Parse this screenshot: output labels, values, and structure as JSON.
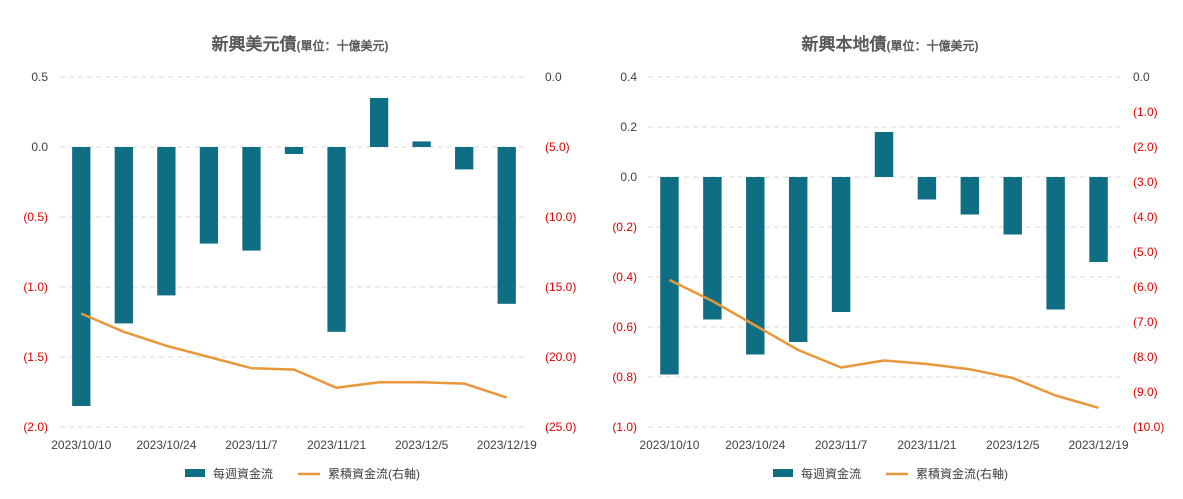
{
  "colors": {
    "bar": "#0f6e84",
    "line": "#e8973a",
    "negative_tick": "#e00000",
    "tick": "#404040",
    "grid": "#d9d9d9"
  },
  "chart_data": [
    {
      "type": "bar+line",
      "title": "新興美元債",
      "title_unit": "(單位：十億美元)",
      "categories": [
        "2023/10/10",
        "2023/10/17",
        "2023/10/24",
        "2023/10/31",
        "2023/11/7",
        "2023/11/14",
        "2023/11/21",
        "2023/11/28",
        "2023/12/5",
        "2023/12/12",
        "2023/12/19"
      ],
      "x_tick_labels": [
        "2023/10/10",
        "",
        "2023/10/24",
        "",
        "2023/11/7",
        "",
        "2023/11/21",
        "",
        "2023/12/5",
        "",
        "2023/12/19"
      ],
      "series": [
        {
          "name": "每週資金流",
          "type": "bar",
          "axis": "left",
          "values": [
            -1.85,
            -1.26,
            -1.06,
            -0.69,
            -0.74,
            -0.05,
            -1.32,
            0.35,
            0.04,
            -0.16,
            -1.12
          ]
        },
        {
          "name": "累積資金流(右軸)",
          "type": "line",
          "axis": "right",
          "values": [
            -16.9,
            -18.2,
            -19.2,
            -20.0,
            -20.8,
            -20.9,
            -22.2,
            -21.8,
            -21.8,
            -21.9,
            -22.9
          ]
        }
      ],
      "left_axis": {
        "ylim": [
          -2.0,
          0.5
        ],
        "ticks": [
          0.5,
          0.0,
          -0.5,
          -1.0,
          -1.5,
          -2.0
        ],
        "tick_labels": [
          "0.5",
          "0.0",
          "(0.5)",
          "(1.0)",
          "(1.5)",
          "(2.0)"
        ]
      },
      "right_axis": {
        "ylim": [
          -25.0,
          0.0
        ],
        "ticks": [
          0.0,
          -5.0,
          -10.0,
          -15.0,
          -20.0,
          -25.0
        ],
        "tick_labels": [
          "0.0",
          "(5.0)",
          "(10.0)",
          "(15.0)",
          "(20.0)",
          "(25.0)"
        ]
      },
      "grid": "horizontal dashed",
      "legend": "bottom"
    },
    {
      "type": "bar+line",
      "title": "新興本地債",
      "title_unit": "(單位：十億美元)",
      "categories": [
        "2023/10/10",
        "2023/10/17",
        "2023/10/24",
        "2023/10/31",
        "2023/11/7",
        "2023/11/14",
        "2023/11/21",
        "2023/11/28",
        "2023/12/5",
        "2023/12/12",
        "2023/12/19"
      ],
      "x_tick_labels": [
        "2023/10/10",
        "",
        "2023/10/24",
        "",
        "2023/11/7",
        "",
        "2023/11/21",
        "",
        "2023/12/5",
        "",
        "2023/12/19"
      ],
      "series": [
        {
          "name": "每週資金流",
          "type": "bar",
          "axis": "left",
          "values": [
            -0.79,
            -0.57,
            -0.71,
            -0.66,
            -0.54,
            0.18,
            -0.09,
            -0.15,
            -0.23,
            -0.53,
            -0.34
          ]
        },
        {
          "name": "累積資金流(右軸)",
          "type": "line",
          "axis": "right",
          "values": [
            -5.8,
            -6.4,
            -7.1,
            -7.8,
            -8.3,
            -8.1,
            -8.2,
            -8.35,
            -8.6,
            -9.1,
            -9.45
          ]
        }
      ],
      "left_axis": {
        "ylim": [
          -1.0,
          0.4
        ],
        "ticks": [
          0.4,
          0.2,
          0.0,
          -0.2,
          -0.4,
          -0.6,
          -0.8,
          -1.0
        ],
        "tick_labels": [
          "0.4",
          "0.2",
          "0.0",
          "(0.2)",
          "(0.4)",
          "(0.6)",
          "(0.8)",
          "(1.0)"
        ]
      },
      "right_axis": {
        "ylim": [
          -10.0,
          0.0
        ],
        "ticks": [
          0.0,
          -1.0,
          -2.0,
          -3.0,
          -4.0,
          -5.0,
          -6.0,
          -7.0,
          -8.0,
          -9.0,
          -10.0
        ],
        "tick_labels": [
          "0.0",
          "(1.0)",
          "(2.0)",
          "(3.0)",
          "(4.0)",
          "(5.0)",
          "(6.0)",
          "(7.0)",
          "(8.0)",
          "(9.0)",
          "(10.0)"
        ]
      },
      "grid": "horizontal dashed",
      "legend": "bottom"
    }
  ]
}
